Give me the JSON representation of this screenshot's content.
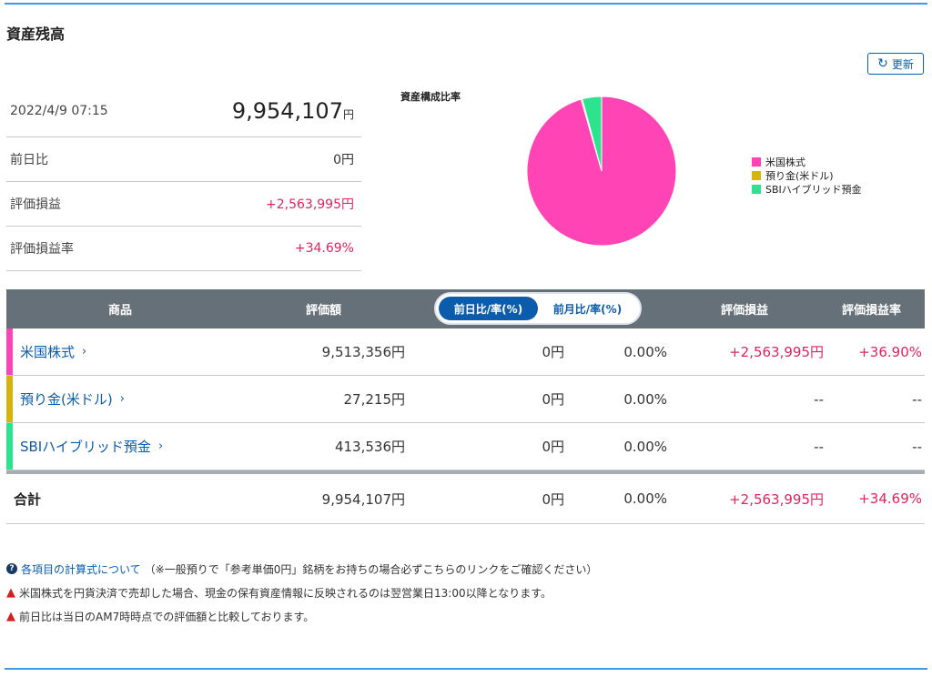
{
  "title": "資産残高",
  "refresh": {
    "label": "更新",
    "icon": "refresh-icon"
  },
  "summary": {
    "datetime": "2022/4/9 07:15",
    "total_value": "9,954,107",
    "total_unit": "円",
    "rows": [
      {
        "label": "前日比",
        "value": "0円",
        "positive": false
      },
      {
        "label": "評価損益",
        "value": "+2,563,995円",
        "positive": true
      },
      {
        "label": "評価損益率",
        "value": "+34.69%",
        "positive": true
      }
    ]
  },
  "chart_data": {
    "type": "pie",
    "title": "資産構成比率",
    "labels": [
      "米国株式",
      "預り金(米ドル)",
      "SBIハイブリッド預金"
    ],
    "values": [
      9513356,
      27215,
      413536
    ],
    "colors": [
      "#ff45b6",
      "#d6b410",
      "#2de38e"
    ],
    "legend_position": "right"
  },
  "table": {
    "headers": {
      "product": "商品",
      "valuation": "評価額",
      "toggle_active": "前日比/率(%)",
      "toggle_inactive": "前月比/率(%)",
      "pl": "評価損益",
      "pl_rate": "評価損益率"
    },
    "rows": [
      {
        "name": "米国株式",
        "value": "9,513,356円",
        "diff": "0円",
        "diff_rate": "0.00%",
        "pl": "+2,563,995円",
        "pl_rate": "+36.90%",
        "color": "#ff45b6"
      },
      {
        "name": "預り金(米ドル)",
        "value": "27,215円",
        "diff": "0円",
        "diff_rate": "0.00%",
        "pl": "--",
        "pl_rate": "--",
        "color": "#d6b410"
      },
      {
        "name": "SBIハイブリッド預金",
        "value": "413,536円",
        "diff": "0円",
        "diff_rate": "0.00%",
        "pl": "--",
        "pl_rate": "--",
        "color": "#2de38e"
      }
    ],
    "total": {
      "label": "合計",
      "value": "9,954,107円",
      "diff": "0円",
      "diff_rate": "0.00%",
      "pl": "+2,563,995円",
      "pl_rate": "+34.69%"
    }
  },
  "notes": {
    "link_text": "各項目の計算式について",
    "link_suffix": "（※一般預りで「参考単価0円」銘柄をお持ちの場合必ずこちらのリンクをご確認ください）",
    "warning1": "米国株式を円貨決済で売却した場合、現金の保有資産情報に反映されるのは翌営業日13:00以降となります。",
    "warning2": "前日比は当日のAM7時時点での評価額と比較しております。"
  }
}
